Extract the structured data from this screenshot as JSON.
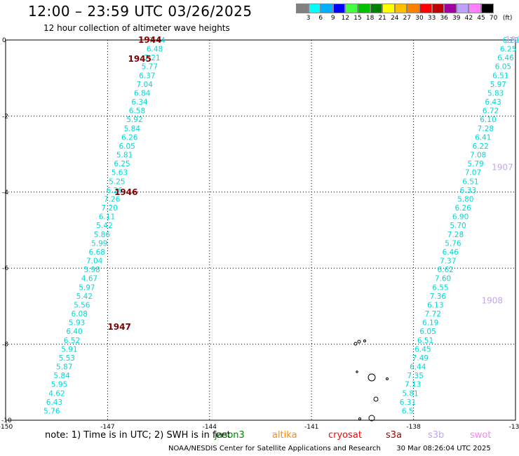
{
  "header": {
    "title": "12:00 – 23:59 UTC 03/26/2025",
    "subtitle": "12 hour collection of altimeter wave heights"
  },
  "legend": {
    "labels": [
      "3",
      "6",
      "9",
      "12",
      "15",
      "18",
      "21",
      "24",
      "27",
      "30",
      "33",
      "36",
      "39",
      "42",
      "45",
      "70"
    ],
    "unit": "(ft)",
    "colors": [
      "#808080",
      "#00ffff",
      "#00b0ff",
      "#0000ff",
      "#40ff40",
      "#00c000",
      "#008000",
      "#ffff00",
      "#ffc000",
      "#ff8000",
      "#ff0000",
      "#c00000",
      "#a000a0",
      "#c0a0ff",
      "#ff80ff",
      "#000000"
    ]
  },
  "map": {
    "lon_labels": [
      "-150",
      "-147",
      "-144",
      "-141",
      "-138",
      "-13"
    ],
    "lat_labels": [
      "0",
      "-2",
      "-4",
      "-6",
      "-8",
      "-10"
    ],
    "lon_range": [
      -150,
      -135
    ],
    "lat_range": [
      -10,
      0
    ],
    "track1_values": [
      "7.44",
      "6.48",
      "7.21",
      "5.77",
      "6.37",
      "7.04",
      "6.84",
      "6.34",
      "6.58",
      "5.92",
      "5.84",
      "6.26",
      "6.05",
      "5.81",
      "6.25",
      "5.63",
      "5.25",
      "6.26",
      "7.26",
      "7.20",
      "6.11",
      "5.42",
      "5.86",
      "5.99",
      "6.68",
      "7.04",
      "5.98",
      "4.67",
      "5.97",
      "5.42",
      "5.56",
      "6.08",
      "5.93",
      "6.40",
      "6.52",
      "5.91",
      "5.53",
      "5.87",
      "5.84",
      "5.95",
      "4.62",
      "6.43",
      "5.76"
    ],
    "track2_values": [
      "6.20",
      "6.25",
      "6.46",
      "6.05",
      "6.51",
      "5.97",
      "5.83",
      "6.43",
      "6.72",
      "6.10",
      "7.28",
      "6.41",
      "6.22",
      "7.08",
      "5.79",
      "7.07",
      "6.51",
      "6.33",
      "5.80",
      "6.26",
      "6.90",
      "5.70",
      "7.28",
      "5.76",
      "6.46",
      "7.37",
      "6.62",
      "7.60",
      "6.55",
      "7.36",
      "6.13",
      "7.72",
      "6.19",
      "6.05",
      "6.51",
      "6.45",
      "7.49",
      "6.44",
      "7.35",
      "7.13",
      "5.81",
      "6.31",
      "6.5"
    ],
    "time_labels_track1": [
      {
        "text": "1944",
        "lon": -146.1,
        "lat": 0.0
      },
      {
        "text": "1945",
        "lon": -146.4,
        "lat": -0.5
      },
      {
        "text": "1946",
        "lon": -146.8,
        "lat": -4.0
      },
      {
        "text": "1947",
        "lon": -147.0,
        "lat": -7.55
      }
    ],
    "time_labels_track2": [
      {
        "text": "1906",
        "lon": -135.3,
        "lat": 0.0
      },
      {
        "text": "1907",
        "lon": -135.7,
        "lat": -3.35
      },
      {
        "text": "1908",
        "lon": -136.0,
        "lat": -6.85
      }
    ]
  },
  "note": {
    "text": "note:  1) Time is in UTC; 2) SWH is in feet"
  },
  "satellites": [
    {
      "name": "jason3",
      "color": "#008000"
    },
    {
      "name": "altika",
      "color": "#ff8c00"
    },
    {
      "name": "cryosat",
      "color": "#ff0000"
    },
    {
      "name": "s3a",
      "color": "#a00000"
    },
    {
      "name": "s3b",
      "color": "#c0a8f0"
    },
    {
      "name": "swot",
      "color": "#ff80ff"
    }
  ],
  "footer": {
    "credit": "NOAA/NESDIS Center for Satellite Applications and Research",
    "timestamp": "30 Mar 08:26:04 UTC 2025"
  }
}
